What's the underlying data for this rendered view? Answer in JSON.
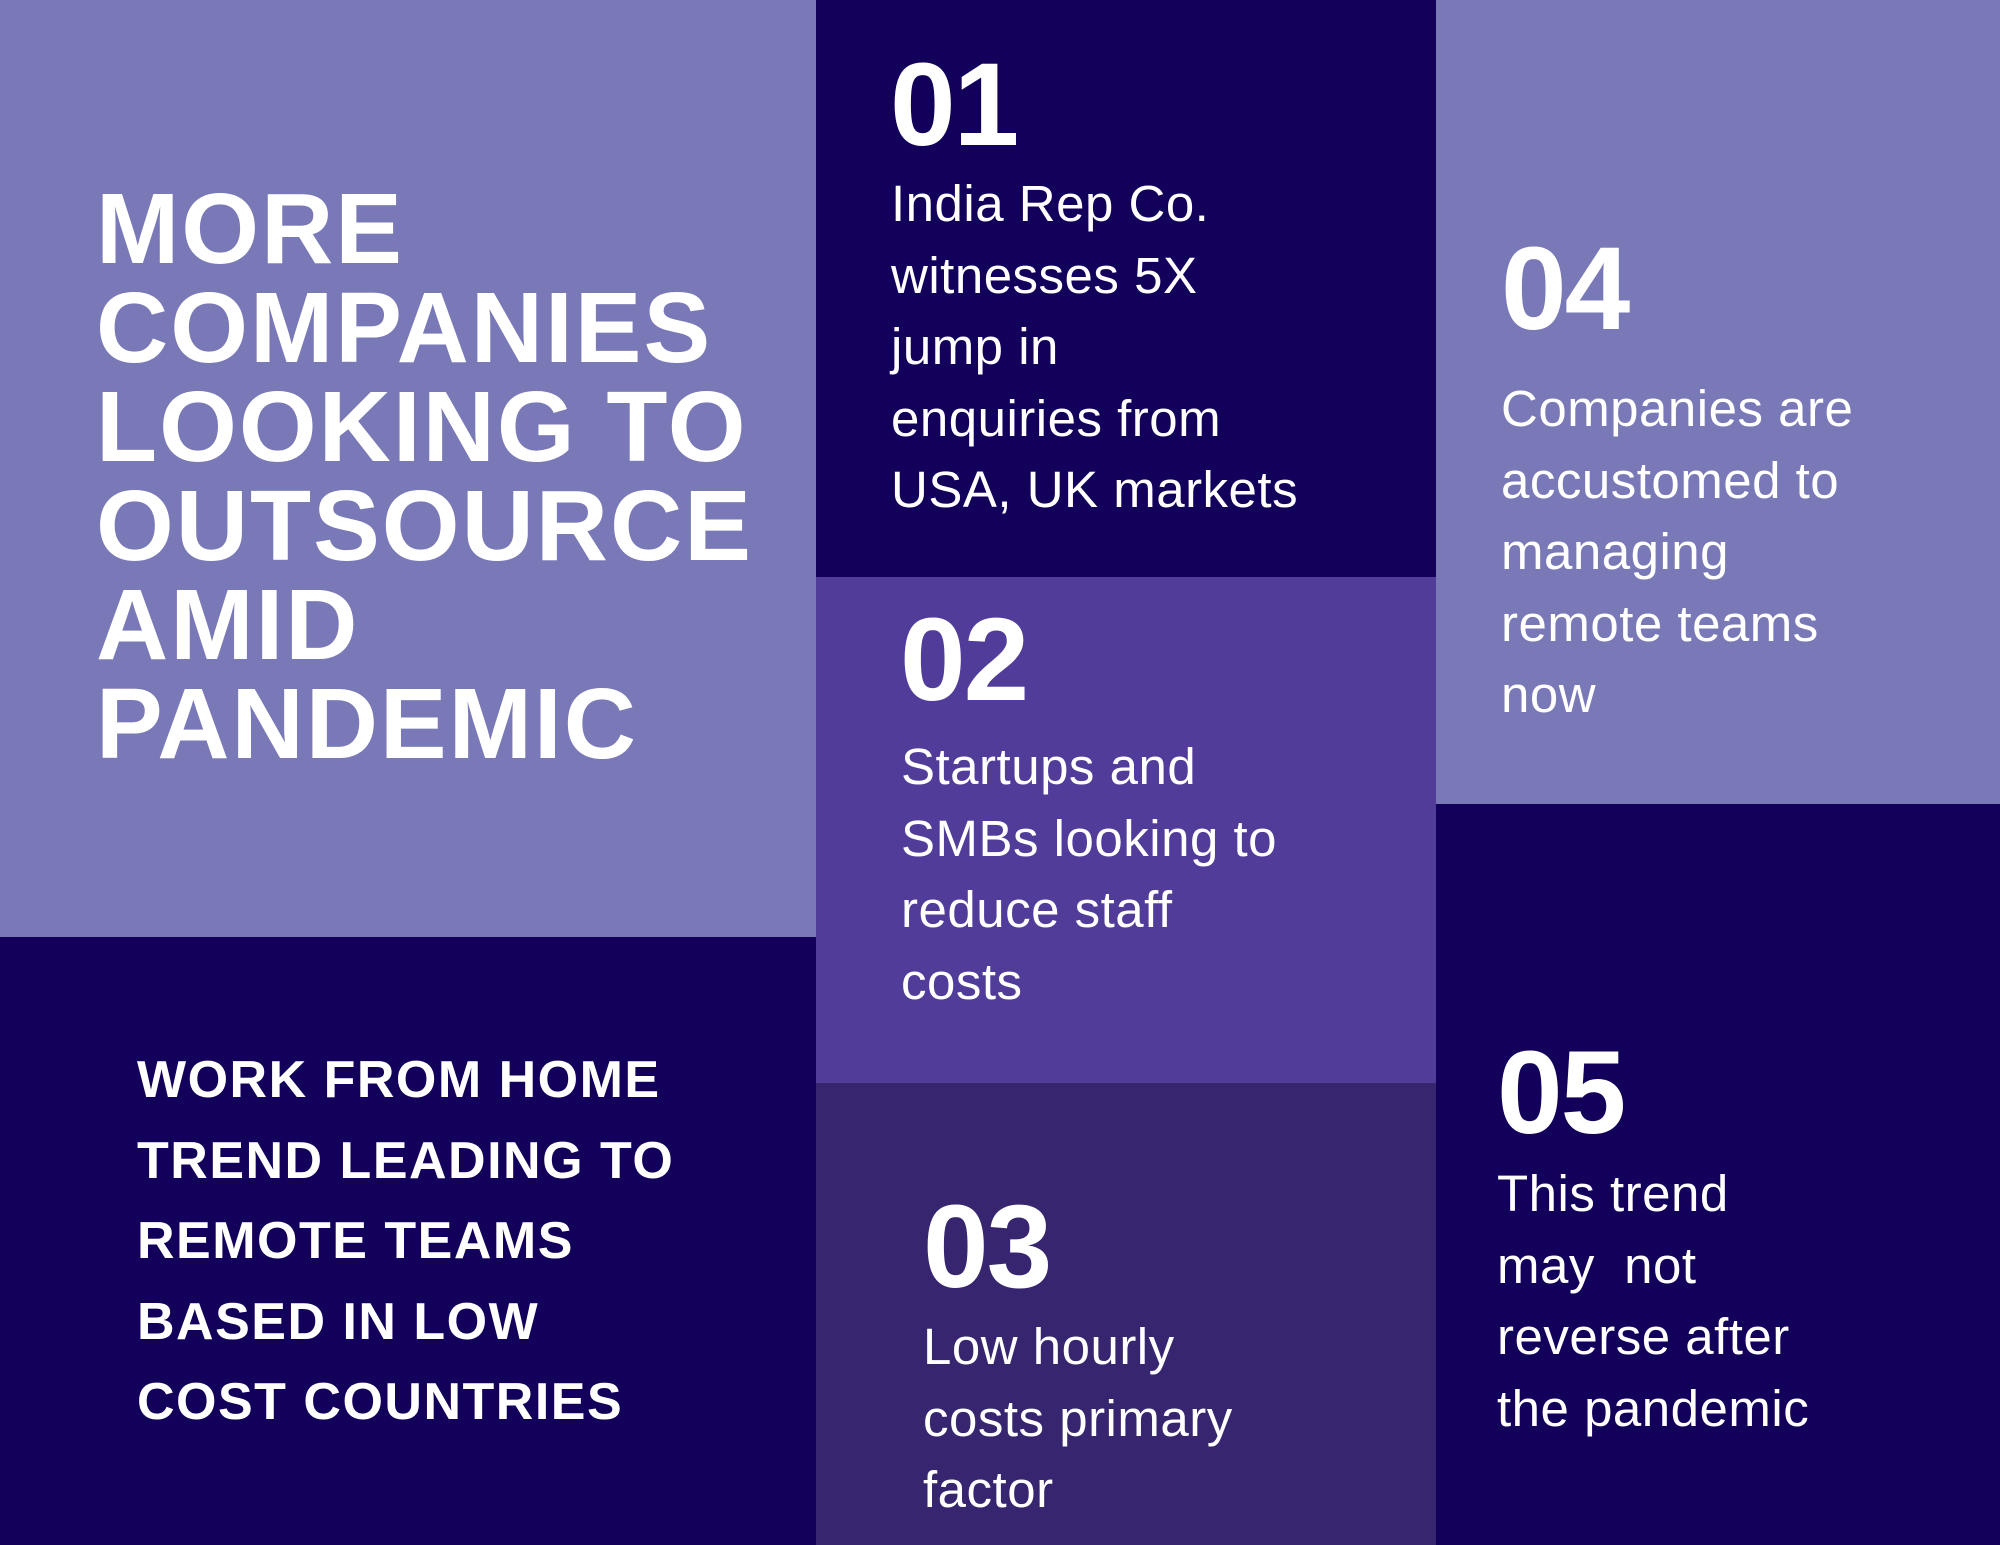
{
  "colors": {
    "light": "#7a79b8",
    "navy": "#13005a",
    "mid": "#513c9a",
    "deep": "#37266f",
    "text": "#ffffff"
  },
  "headline": {
    "lines": [
      "MORE",
      "COMPANIES",
      "LOOKING TO",
      "OUTSOURCE",
      "AMID",
      "PANDEMIC"
    ]
  },
  "subheadline": {
    "lines": [
      "WORK FROM HOME",
      "TREND LEADING TO",
      "REMOTE TEAMS",
      "BASED IN LOW",
      "COST COUNTRIES"
    ]
  },
  "points": [
    {
      "number": "01",
      "lines": [
        "India Rep Co.",
        "witnesses 5X",
        "jump in",
        "enquiries from",
        "USA, UK markets"
      ]
    },
    {
      "number": "02",
      "lines": [
        "Startups and",
        "SMBs looking to",
        "reduce staff",
        "costs"
      ]
    },
    {
      "number": "03",
      "lines": [
        "Low hourly",
        "costs primary",
        "factor"
      ]
    },
    {
      "number": "04",
      "lines": [
        "Companies are",
        "accustomed to",
        "managing",
        "remote teams",
        "now"
      ]
    },
    {
      "number": "05",
      "lines": [
        "This trend",
        "may  not",
        "reverse after",
        "the pandemic"
      ]
    }
  ]
}
